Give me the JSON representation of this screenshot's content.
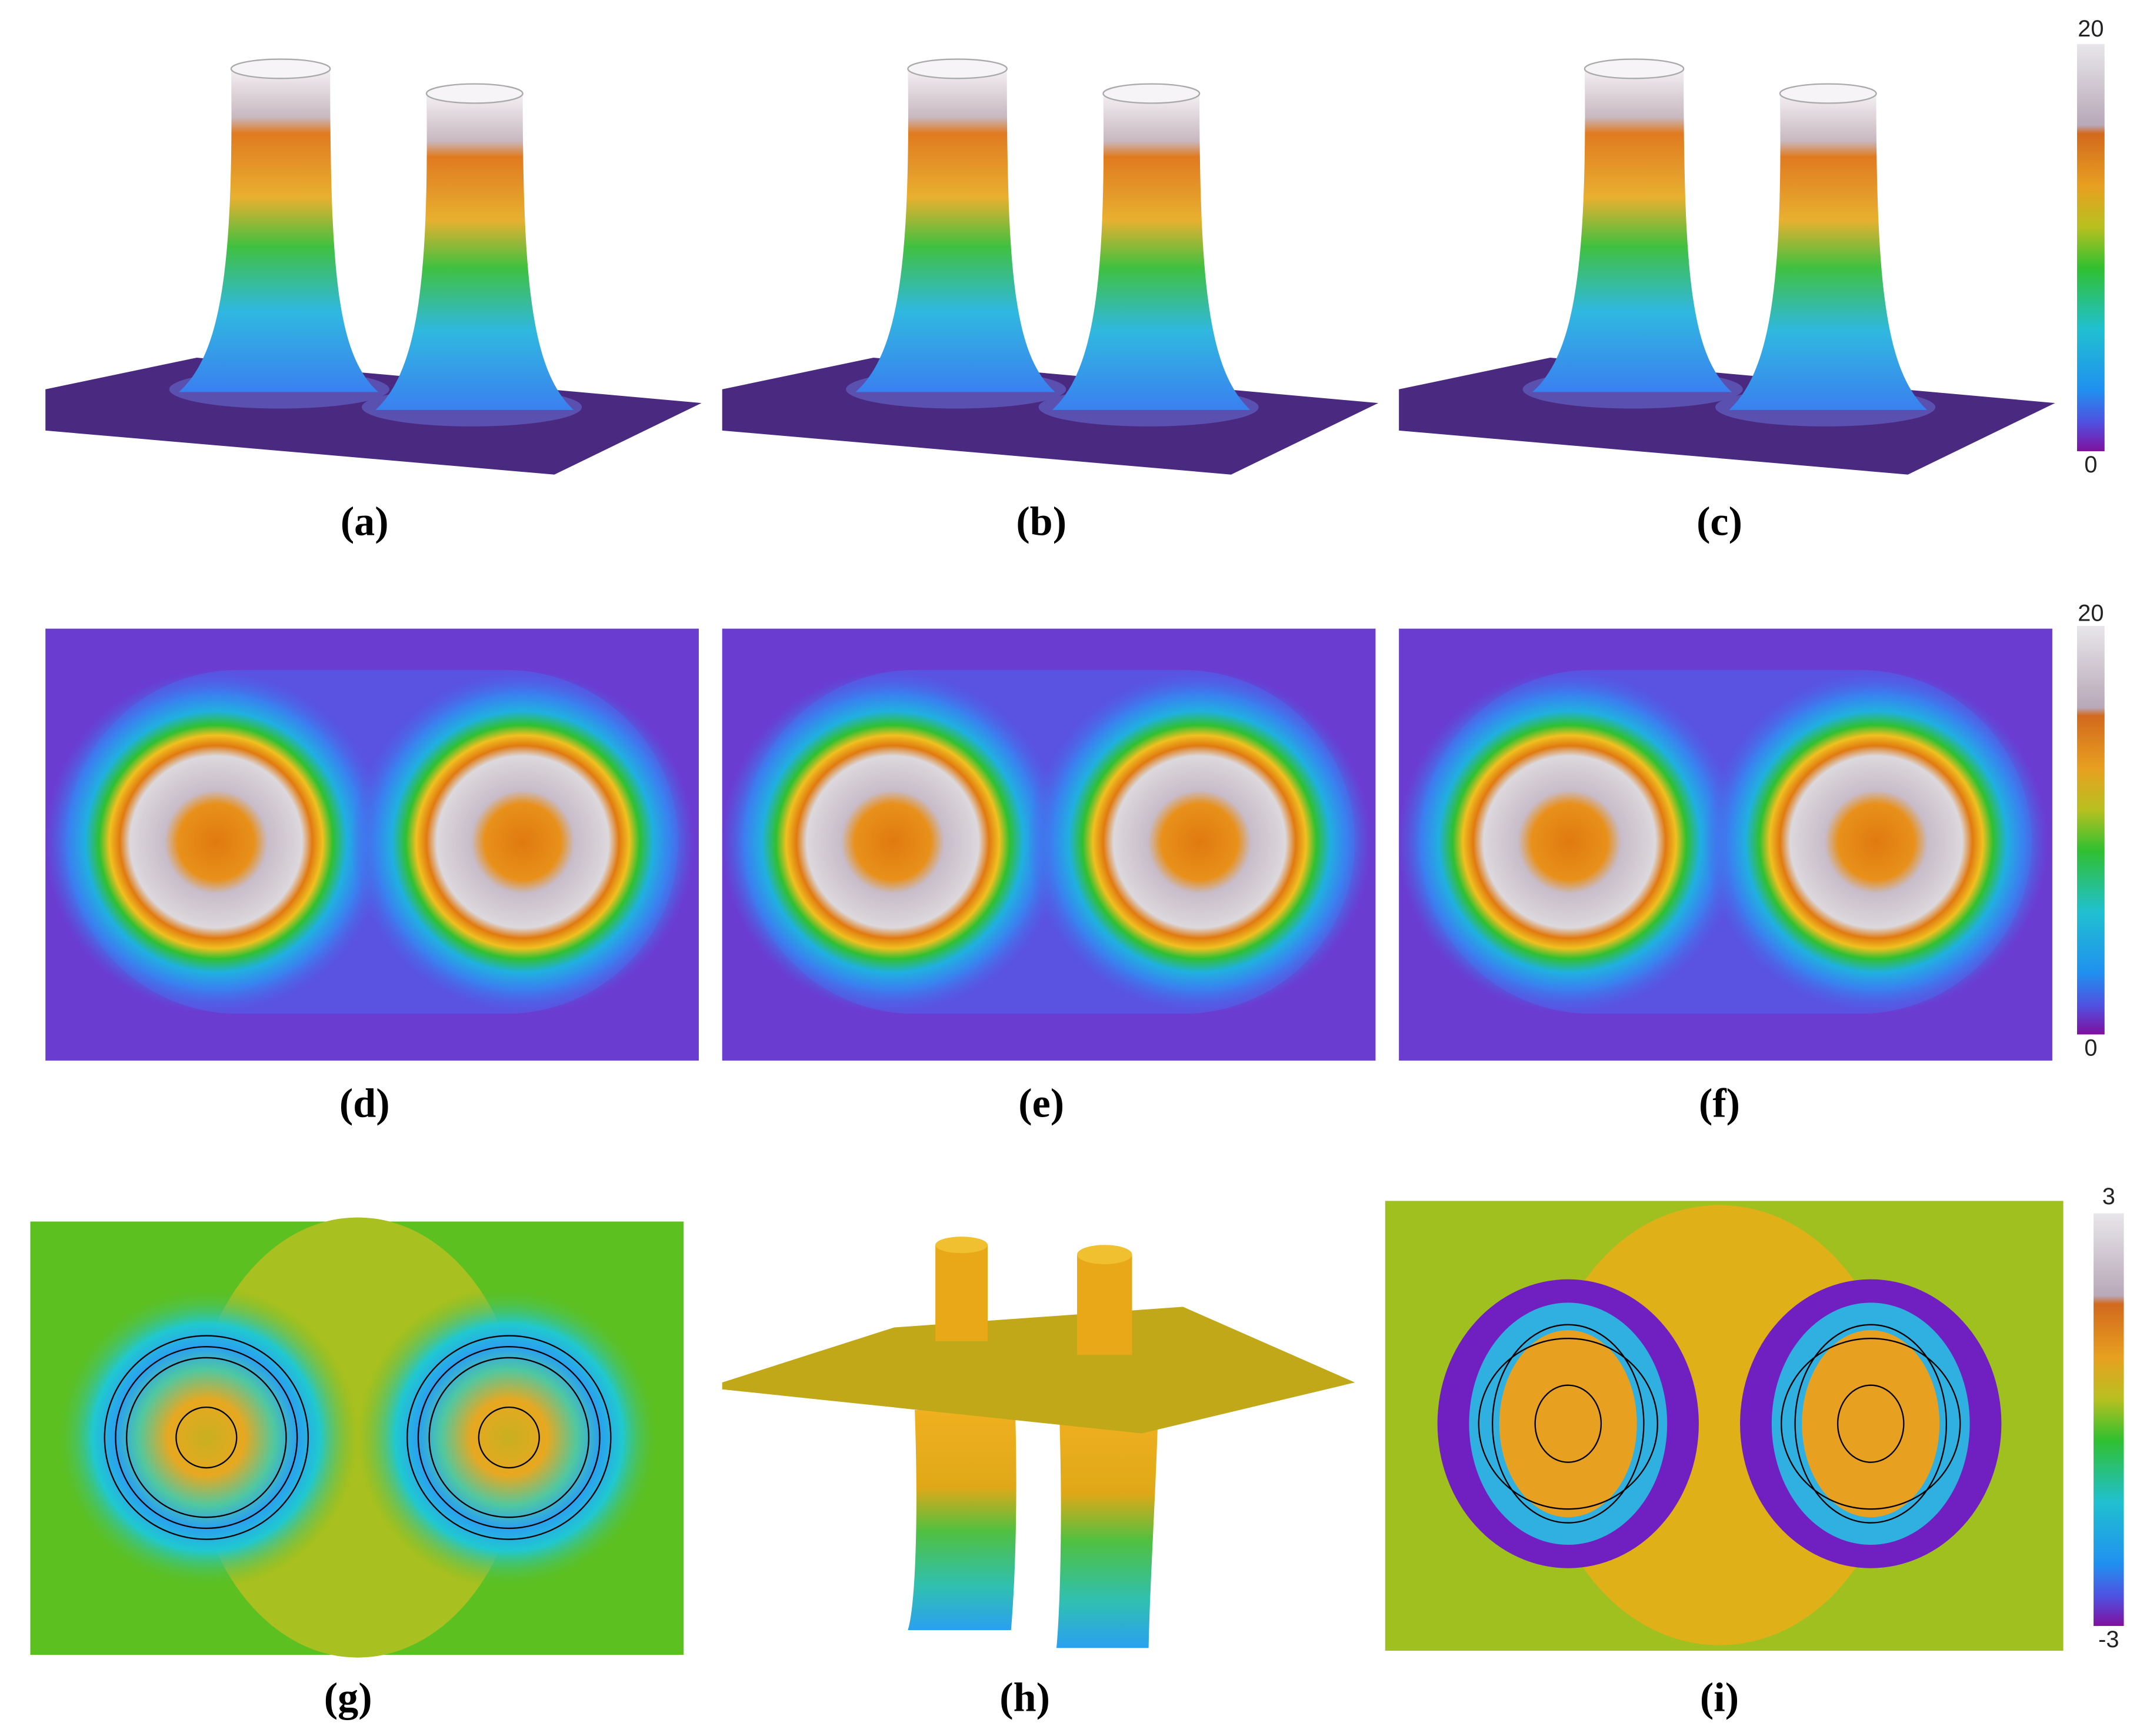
{
  "figure": {
    "panels": [
      {
        "label": "(a)"
      },
      {
        "label": "(b)"
      },
      {
        "label": "(c)"
      },
      {
        "label": "(d)"
      },
      {
        "label": "(e)"
      },
      {
        "label": "(f)"
      },
      {
        "label": "(g)"
      },
      {
        "label": "(h)"
      },
      {
        "label": "(i)"
      }
    ],
    "colorbars": [
      {
        "max_label": "20",
        "min_label": "0"
      },
      {
        "max_label": "20",
        "min_label": "0"
      },
      {
        "max_label": "3",
        "min_label": "-3"
      }
    ]
  }
}
